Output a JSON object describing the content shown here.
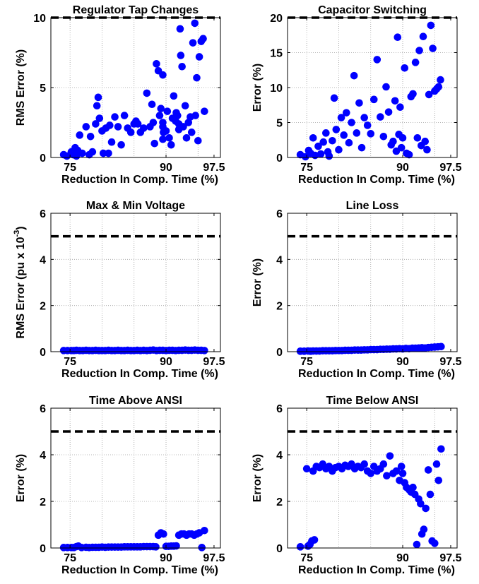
{
  "chart_data": [
    {
      "type": "scatter",
      "title": "Regulator Tap Changes",
      "xlabel": "Reduction In Comp. Time (%)",
      "ylabel": "RMS Error (%)",
      "xlim": [
        72,
        98.5
      ],
      "ylim": [
        0,
        10
      ],
      "xticks": [
        {
          "value": 75,
          "label": "75"
        },
        {
          "value": 90,
          "label": "90"
        },
        {
          "value": 97.5,
          "label": "97.5"
        }
      ],
      "xgrid": [
        75,
        80,
        85,
        90,
        95
      ],
      "yticks": [
        {
          "value": 0,
          "label": "0"
        },
        {
          "value": 5,
          "label": "5"
        },
        {
          "value": 10,
          "label": "10"
        }
      ],
      "threshold": 10,
      "marker_color": "#0000ff",
      "series": [
        {
          "x": [
            74.0,
            74.5,
            75.2,
            75.5,
            75.8,
            76.0,
            76.2,
            76.5,
            76.9,
            77.5,
            78.0,
            78.2,
            78.5,
            79.0,
            79.2,
            79.4,
            79.6,
            80.0,
            80.2,
            80.6,
            81.0,
            81.2,
            81.5,
            82.0,
            82.5,
            83.0,
            83.5,
            84.0,
            84.5,
            85.0,
            85.3,
            85.6,
            86.0,
            86.5,
            87.0,
            87.5,
            87.8,
            88.0,
            88.2,
            88.5,
            88.8,
            89.0,
            89.2,
            89.5,
            89.5,
            89.5,
            89.5,
            89.6,
            90.0,
            90.2,
            90.5,
            90.8,
            91.0,
            91.2,
            91.5,
            91.6,
            91.8,
            92.0,
            92.0,
            92.2,
            92.3,
            92.5,
            92.7,
            93.0,
            93.2,
            93.5,
            93.8,
            94.0,
            94.2,
            94.5,
            94.6,
            94.8,
            95.0,
            95.2,
            95.5,
            95.8,
            96.0
          ],
          "y": [
            0.2,
            0.1,
            0.4,
            0.2,
            0.7,
            0.1,
            0.5,
            1.6,
            0.3,
            2.2,
            0.2,
            1.5,
            0.4,
            2.4,
            3.7,
            4.3,
            2.8,
            1.9,
            0.3,
            2.1,
            0.3,
            2.3,
            1.1,
            2.9,
            2.2,
            0.9,
            3.0,
            2.1,
            1.8,
            2.4,
            2.6,
            2.4,
            1.8,
            2.1,
            4.6,
            2.2,
            3.8,
            2.5,
            1.0,
            6.7,
            6.2,
            3.0,
            3.5,
            5.9,
            2.5,
            1.3,
            2.2,
            1.8,
            1.9,
            3.3,
            1.4,
            0.9,
            2.8,
            4.4,
            2.6,
            3.2,
            3.0,
            2.4,
            2.0,
            9.2,
            7.3,
            6.5,
            2.2,
            3.7,
            1.4,
            2.5,
            2.9,
            1.8,
            8.2,
            9.6,
            3.0,
            5.7,
            1.2,
            7.2,
            8.3,
            8.5,
            3.3
          ]
        }
      ]
    },
    {
      "type": "scatter",
      "title": "Capacitor Switching",
      "xlabel": "Reduction In Comp. Time (%)",
      "ylabel": "Error (%)",
      "xlim": [
        72,
        98.5
      ],
      "ylim": [
        0,
        20
      ],
      "xticks": [
        {
          "value": 75,
          "label": "75"
        },
        {
          "value": 90,
          "label": "90"
        },
        {
          "value": 97.5,
          "label": "97.5"
        }
      ],
      "xgrid": [
        75,
        80,
        85,
        90,
        95
      ],
      "yticks": [
        {
          "value": 0,
          "label": "0"
        },
        {
          "value": 5,
          "label": "5"
        },
        {
          "value": 10,
          "label": "10"
        },
        {
          "value": 15,
          "label": "15"
        },
        {
          "value": 20,
          "label": "20"
        }
      ],
      "threshold": 20,
      "marker_color": "#0000ff",
      "series": [
        {
          "x": [
            74.0,
            74.8,
            75.3,
            75.6,
            76.0,
            76.3,
            76.8,
            77.2,
            77.6,
            78.0,
            78.3,
            78.5,
            79.0,
            79.3,
            79.6,
            80.0,
            80.4,
            80.8,
            81.2,
            81.6,
            82.0,
            82.4,
            82.8,
            83.2,
            83.6,
            84.0,
            84.5,
            85.0,
            85.5,
            86.0,
            86.5,
            87.0,
            87.4,
            87.8,
            88.2,
            88.5,
            88.8,
            89.0,
            89.2,
            89.4,
            89.6,
            89.8,
            90.0,
            90.3,
            90.6,
            91.0,
            91.3,
            91.6,
            92.0,
            92.3,
            92.6,
            92.9,
            93.2,
            93.5,
            93.8,
            94.1,
            94.4,
            94.7,
            95.0,
            95.3,
            95.6,
            95.9
          ],
          "y": [
            0.4,
            0.1,
            1.0,
            0.6,
            2.8,
            0.3,
            1.6,
            0.5,
            2.2,
            3.5,
            0.8,
            0.2,
            2.4,
            8.5,
            4.0,
            1.1,
            5.7,
            3.2,
            6.4,
            2.1,
            5.0,
            11.7,
            3.5,
            7.8,
            1.4,
            5.7,
            4.6,
            3.4,
            8.3,
            14.0,
            5.8,
            3.0,
            10.1,
            6.5,
            1.8,
            2.3,
            8.1,
            0.9,
            17.2,
            3.3,
            7.2,
            1.4,
            2.8,
            12.8,
            0.6,
            0.4,
            8.7,
            9.1,
            13.6,
            2.8,
            15.3,
            1.7,
            17.3,
            2.3,
            1.1,
            9.0,
            18.9,
            15.6,
            9.5,
            9.8,
            10.1,
            11.1
          ]
        }
      ]
    },
    {
      "type": "scatter",
      "title": "Max & Min Voltage",
      "xlabel": "Reduction In Comp. Time (%)",
      "ylabel": "RMS Error (pu x 10",
      "ylabel_sup": "-3",
      "ylabel_end": ")",
      "xlim": [
        72,
        98.5
      ],
      "ylim": [
        0,
        6
      ],
      "xticks": [
        {
          "value": 75,
          "label": "75"
        },
        {
          "value": 90,
          "label": "90"
        },
        {
          "value": 97.5,
          "label": "97.5"
        }
      ],
      "xgrid": [
        75,
        80,
        85,
        90,
        95
      ],
      "yticks": [
        {
          "value": 0,
          "label": "0"
        },
        {
          "value": 2,
          "label": "2"
        },
        {
          "value": 4,
          "label": "4"
        },
        {
          "value": 6,
          "label": "6"
        }
      ],
      "threshold": 5,
      "marker_color": "#0000ff",
      "series": [
        {
          "x": [
            74.0,
            74.6,
            75.2,
            75.6,
            76.0,
            76.5,
            77.0,
            77.5,
            78.0,
            78.5,
            79.0,
            79.5,
            80.0,
            80.5,
            81.0,
            81.5,
            82.0,
            82.5,
            83.0,
            83.5,
            84.0,
            84.5,
            85.0,
            85.5,
            86.0,
            86.5,
            87.0,
            87.5,
            88.0,
            88.5,
            89.0,
            89.5,
            90.0,
            90.5,
            91.0,
            91.5,
            92.0,
            92.5,
            93.0,
            93.5,
            94.0,
            94.5,
            95.0,
            95.5,
            96.0
          ],
          "y": [
            0.05,
            0.05,
            0.05,
            0.05,
            0.06,
            0.05,
            0.05,
            0.06,
            0.05,
            0.05,
            0.06,
            0.05,
            0.05,
            0.05,
            0.06,
            0.05,
            0.05,
            0.06,
            0.05,
            0.05,
            0.06,
            0.05,
            0.05,
            0.06,
            0.05,
            0.06,
            0.05,
            0.06,
            0.07,
            0.05,
            0.06,
            0.06,
            0.05,
            0.06,
            0.06,
            0.05,
            0.06,
            0.06,
            0.07,
            0.06,
            0.06,
            0.07,
            0.06,
            0.06,
            0.05
          ]
        }
      ]
    },
    {
      "type": "scatter",
      "title": "Line Loss",
      "xlabel": "Reduction In Comp. Time (%)",
      "ylabel": "Error (%)",
      "xlim": [
        72,
        98.5
      ],
      "ylim": [
        0,
        6
      ],
      "xticks": [
        {
          "value": 75,
          "label": "75"
        },
        {
          "value": 90,
          "label": "90"
        },
        {
          "value": 97.5,
          "label": "97.5"
        }
      ],
      "xgrid": [
        75,
        80,
        85,
        90,
        95
      ],
      "yticks": [
        {
          "value": 0,
          "label": "0"
        },
        {
          "value": 2,
          "label": "2"
        },
        {
          "value": 4,
          "label": "4"
        },
        {
          "value": 6,
          "label": "6"
        }
      ],
      "threshold": 5,
      "marker_color": "#0000ff",
      "series": [
        {
          "x": [
            74.0,
            74.6,
            75.2,
            75.6,
            76.0,
            76.5,
            77.0,
            77.5,
            78.0,
            78.5,
            79.0,
            79.5,
            80.0,
            80.5,
            81.0,
            81.5,
            82.0,
            82.5,
            83.0,
            83.5,
            84.0,
            84.5,
            85.0,
            85.5,
            86.0,
            86.5,
            87.0,
            87.5,
            88.0,
            88.5,
            89.0,
            89.5,
            90.0,
            90.5,
            91.0,
            91.5,
            92.0,
            92.5,
            93.0,
            93.5,
            94.0,
            94.5,
            95.0,
            95.5,
            96.0
          ],
          "y": [
            0.02,
            0.02,
            0.03,
            0.02,
            0.03,
            0.03,
            0.03,
            0.04,
            0.04,
            0.04,
            0.04,
            0.05,
            0.05,
            0.05,
            0.06,
            0.06,
            0.06,
            0.07,
            0.07,
            0.07,
            0.08,
            0.08,
            0.09,
            0.09,
            0.09,
            0.1,
            0.1,
            0.11,
            0.11,
            0.12,
            0.12,
            0.13,
            0.12,
            0.14,
            0.13,
            0.15,
            0.15,
            0.16,
            0.17,
            0.16,
            0.18,
            0.19,
            0.2,
            0.21,
            0.22
          ]
        }
      ]
    },
    {
      "type": "scatter",
      "title": "Time Above ANSI",
      "xlabel": "Reduction In Comp. Time (%)",
      "ylabel": "Error (%)",
      "xlim": [
        72,
        98.5
      ],
      "ylim": [
        0,
        6
      ],
      "xticks": [
        {
          "value": 75,
          "label": "75"
        },
        {
          "value": 90,
          "label": "90"
        },
        {
          "value": 97.5,
          "label": "97.5"
        }
      ],
      "xgrid": [
        75,
        80,
        85,
        90,
        95
      ],
      "yticks": [
        {
          "value": 0,
          "label": "0"
        },
        {
          "value": 2,
          "label": "2"
        },
        {
          "value": 4,
          "label": "4"
        },
        {
          "value": 6,
          "label": "6"
        }
      ],
      "threshold": 5,
      "marker_color": "#0000ff",
      "series": [
        {
          "x": [
            74.0,
            74.6,
            75.2,
            75.6,
            76.0,
            76.3,
            76.8,
            77.5,
            78.0,
            78.5,
            79.0,
            79.5,
            80.0,
            80.5,
            81.0,
            81.5,
            82.0,
            82.5,
            83.0,
            83.5,
            84.0,
            84.5,
            85.0,
            85.5,
            86.0,
            86.5,
            87.0,
            87.5,
            88.0,
            88.4,
            88.8,
            89.2,
            89.6,
            90.0,
            90.4,
            90.8,
            91.2,
            91.6,
            92.0,
            92.4,
            92.8,
            93.2,
            93.6,
            94.0,
            94.4,
            94.8,
            95.2,
            95.6,
            96.0
          ],
          "y": [
            0.02,
            0.02,
            0.02,
            0.02,
            0.06,
            0.08,
            0.02,
            0.03,
            0.02,
            0.03,
            0.03,
            0.03,
            0.04,
            0.03,
            0.04,
            0.04,
            0.04,
            0.04,
            0.04,
            0.05,
            0.05,
            0.05,
            0.05,
            0.05,
            0.05,
            0.06,
            0.06,
            0.06,
            0.06,
            0.05,
            0.55,
            0.65,
            0.6,
            0.07,
            0.07,
            0.08,
            0.08,
            0.09,
            0.55,
            0.6,
            0.6,
            0.55,
            0.6,
            0.6,
            0.55,
            0.6,
            0.65,
            0.02,
            0.75
          ]
        }
      ]
    },
    {
      "type": "scatter",
      "title": "Time Below ANSI",
      "xlabel": "Reduction In Comp. Time (%)",
      "ylabel": "Error (%)",
      "xlim": [
        72,
        98.5
      ],
      "ylim": [
        0,
        6
      ],
      "xticks": [
        {
          "value": 75,
          "label": "75"
        },
        {
          "value": 90,
          "label": "90"
        },
        {
          "value": 97.5,
          "label": "97.5"
        }
      ],
      "xgrid": [
        75,
        80,
        85,
        90,
        95
      ],
      "yticks": [
        {
          "value": 0,
          "label": "0"
        },
        {
          "value": 2,
          "label": "2"
        },
        {
          "value": 4,
          "label": "4"
        },
        {
          "value": 6,
          "label": "6"
        }
      ],
      "threshold": 5,
      "marker_color": "#0000ff",
      "series": [
        {
          "x": [
            74.0,
            75.0,
            75.2,
            75.5,
            75.8,
            76.0,
            76.2,
            76.5,
            77.0,
            77.5,
            78.0,
            78.5,
            79.0,
            79.5,
            80.0,
            80.5,
            81.0,
            81.5,
            82.0,
            82.5,
            83.0,
            83.5,
            84.0,
            84.5,
            85.0,
            85.5,
            86.0,
            86.5,
            87.0,
            87.5,
            88.0,
            88.5,
            89.0,
            89.5,
            89.8,
            90.0,
            90.3,
            90.6,
            91.0,
            91.3,
            91.6,
            91.9,
            92.2,
            92.5,
            92.8,
            93.0,
            93.3,
            93.6,
            94.0,
            94.3,
            94.6,
            95.0,
            95.3,
            95.6,
            96.0
          ],
          "y": [
            0.05,
            3.4,
            0.08,
            0.15,
            0.3,
            3.3,
            0.35,
            3.5,
            3.45,
            3.6,
            3.4,
            3.5,
            3.3,
            3.45,
            3.5,
            3.4,
            3.55,
            3.5,
            3.6,
            3.4,
            3.5,
            3.45,
            3.6,
            3.3,
            3.2,
            3.5,
            3.3,
            3.4,
            3.6,
            3.1,
            3.95,
            3.2,
            3.3,
            2.9,
            3.5,
            3.2,
            2.8,
            2.6,
            2.5,
            2.4,
            2.6,
            2.3,
            0.15,
            2.1,
            1.9,
            0.6,
            0.8,
            1.7,
            3.35,
            2.3,
            0.3,
            0.2,
            3.6,
            2.9,
            4.25
          ]
        }
      ]
    }
  ]
}
